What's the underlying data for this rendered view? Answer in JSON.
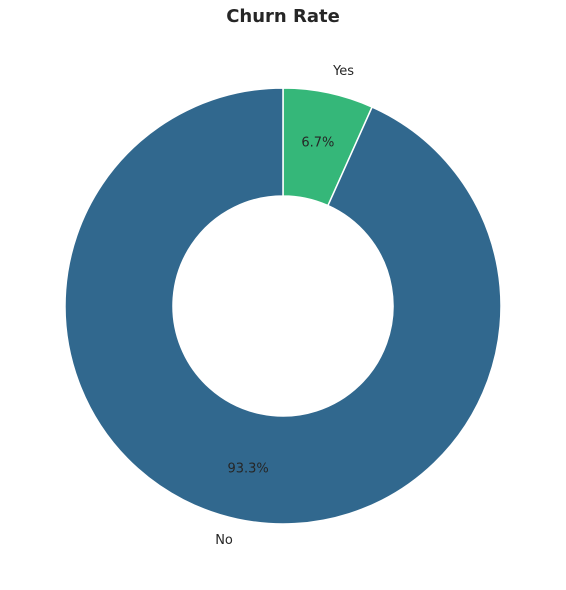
{
  "chart_data": {
    "type": "pie",
    "donut": true,
    "title": "Churn Rate",
    "start_angle_deg": 90,
    "direction": "clockwise",
    "slices": [
      {
        "label": "Yes",
        "value": 6.7,
        "pct_label": "6.7%",
        "color": "#35b779"
      },
      {
        "label": "No",
        "value": 93.3,
        "pct_label": "93.3%",
        "color": "#31688e"
      }
    ],
    "wedge_edge_color": "#ffffff",
    "legend": "none"
  }
}
